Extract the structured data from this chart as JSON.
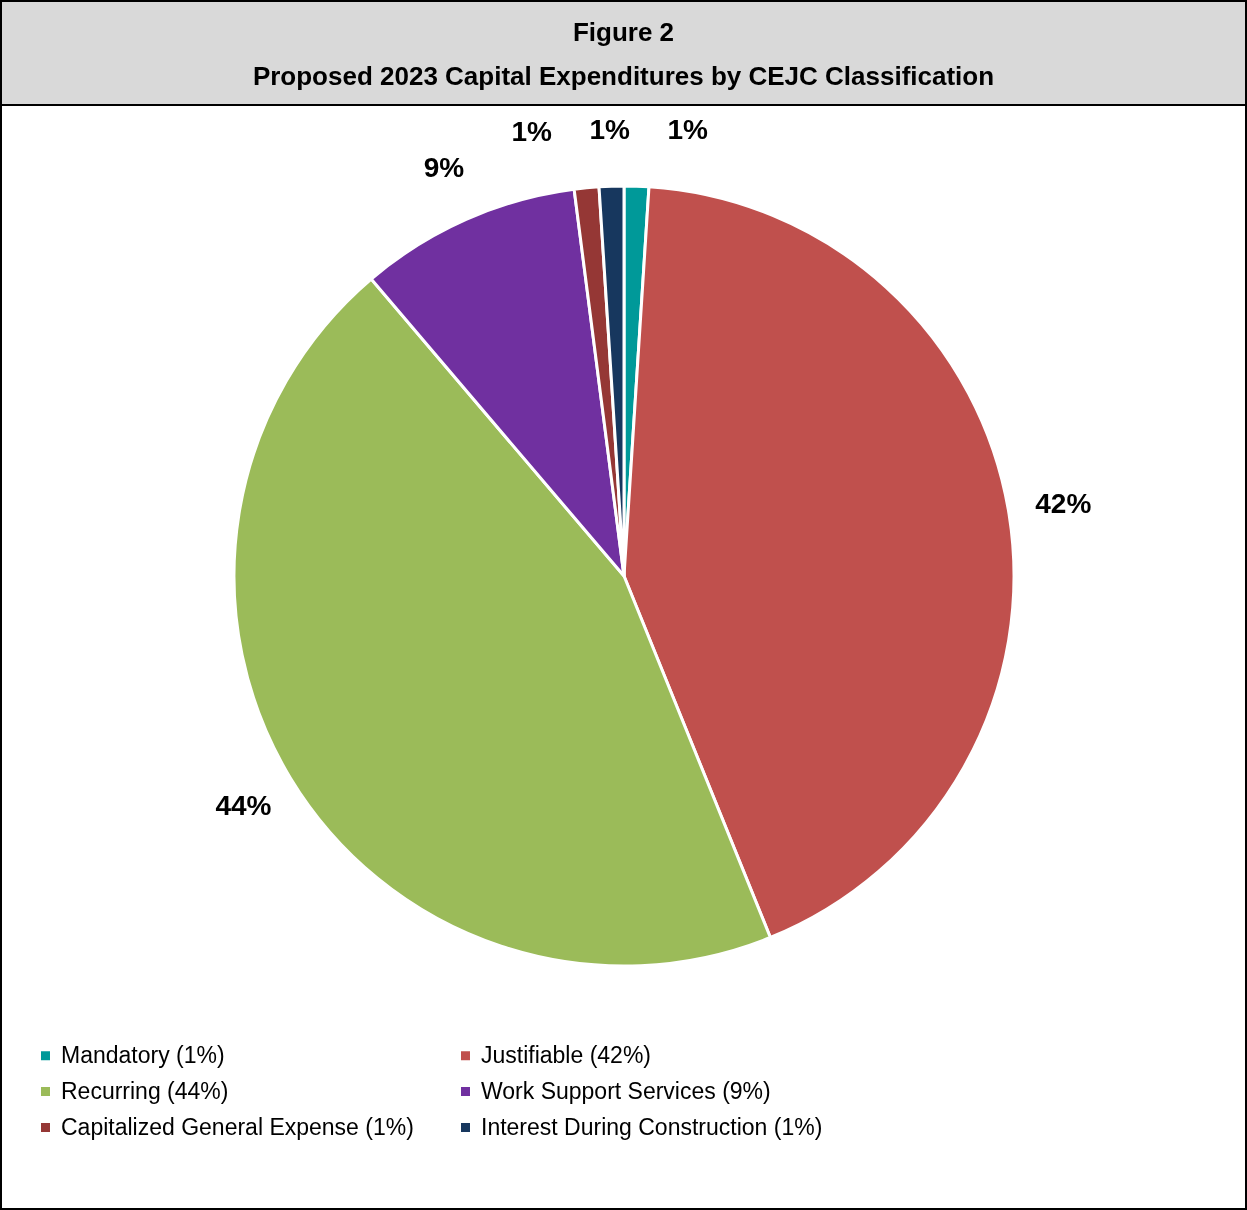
{
  "chart_data": {
    "type": "pie",
    "title": "Figure 2",
    "subtitle": "Proposed 2023 Capital Expenditures by CEJC Classification",
    "categories": [
      "Mandatory (1%)",
      "Justifiable (42%)",
      "Recurring (44%)",
      "Work Support Services (9%)",
      "Capitalized General Expense (1%)",
      "Interest During Construction (1%)"
    ],
    "values": [
      1,
      42,
      44,
      9,
      1,
      1
    ],
    "colors": [
      "#009999",
      "#c0504d",
      "#9bbb59",
      "#7030a0",
      "#953735",
      "#17375e"
    ],
    "value_labels": [
      "1%",
      "42%",
      "44%",
      "9%",
      "1%",
      "1%"
    ],
    "legend": "bottom"
  }
}
